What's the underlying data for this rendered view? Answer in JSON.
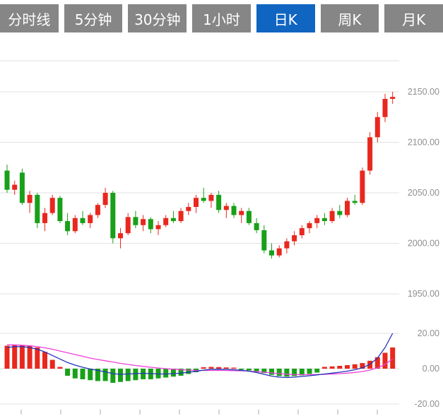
{
  "tabs": [
    {
      "name": "tab-timeline",
      "label": "分时线",
      "active": false
    },
    {
      "name": "tab-5min",
      "label": "5分钟",
      "active": false
    },
    {
      "name": "tab-30min",
      "label": "30分钟",
      "active": false
    },
    {
      "name": "tab-1hour",
      "label": "1小时",
      "active": false
    },
    {
      "name": "tab-daily-k",
      "label": "日K",
      "active": true
    },
    {
      "name": "tab-weekly-k",
      "label": "周K",
      "active": false
    },
    {
      "name": "tab-monthly-k",
      "label": "月K",
      "active": false
    }
  ],
  "colors": {
    "tab_active_bg": "#1065c0",
    "tab_inactive_bg": "#868686",
    "tab_text": "#ffffff",
    "up": "#e8281e",
    "down": "#18a018",
    "dif_line": "#2233bb",
    "dea_line": "#ee3fd8",
    "grid": "#e2e2e2",
    "axis_text": "#8f8f8f",
    "tick": "#aaaaaa"
  },
  "price_axis": [
    {
      "text": "2150.00",
      "value": 2150
    },
    {
      "text": "2100.00",
      "value": 2100
    },
    {
      "text": "2050.00",
      "value": 2050
    },
    {
      "text": "2000.00",
      "value": 2000
    },
    {
      "text": "1950.00",
      "value": 1950
    }
  ],
  "macd_axis": [
    {
      "text": "20.00",
      "value": 20
    },
    {
      "text": "0.00",
      "value": 0
    },
    {
      "text": "-20.00",
      "value": -20
    }
  ],
  "chart_data": {
    "type": "candlestick",
    "convention": "red-up-green-down",
    "panes": [
      {
        "name": "price-pane",
        "type": "candlestick",
        "ylim": [
          1935,
          2185
        ],
        "open": [
          2072,
          2053,
          2070,
          2040,
          2048,
          2020,
          2030,
          2045,
          2022,
          2012,
          2025,
          2020,
          2028,
          2038,
          2050,
          2005,
          2010,
          2026,
          2018,
          2024,
          2014,
          2018,
          2025,
          2022,
          2032,
          2036,
          2045,
          2042,
          2048,
          2033,
          2037,
          2028,
          2032,
          2020,
          2013,
          1993,
          1988,
          1995,
          2002,
          2008,
          2015,
          2020,
          2025,
          2022,
          2032,
          2028,
          2042,
          2040,
          2072,
          2105,
          2125,
          2143
        ],
        "high": [
          2078,
          2062,
          2074,
          2052,
          2050,
          2035,
          2048,
          2047,
          2030,
          2028,
          2032,
          2030,
          2040,
          2055,
          2052,
          2015,
          2030,
          2032,
          2028,
          2026,
          2022,
          2028,
          2032,
          2035,
          2040,
          2048,
          2055,
          2050,
          2052,
          2040,
          2040,
          2035,
          2035,
          2025,
          2018,
          2000,
          1998,
          2005,
          2012,
          2018,
          2022,
          2028,
          2030,
          2035,
          2038,
          2045,
          2048,
          2075,
          2110,
          2130,
          2148,
          2150
        ],
        "low": [
          2050,
          2048,
          2038,
          2030,
          2015,
          2012,
          2028,
          2020,
          2008,
          2010,
          2018,
          2015,
          2025,
          2035,
          2000,
          1995,
          2008,
          2015,
          2012,
          2010,
          2008,
          2016,
          2020,
          2020,
          2028,
          2030,
          2040,
          2035,
          2030,
          2025,
          2025,
          2020,
          2018,
          2010,
          1990,
          1985,
          1986,
          1990,
          1998,
          2005,
          2010,
          2015,
          2018,
          2020,
          2025,
          2026,
          2038,
          2038,
          2068,
          2100,
          2120,
          2138
        ],
        "close": [
          2053,
          2058,
          2040,
          2048,
          2020,
          2030,
          2045,
          2022,
          2012,
          2025,
          2020,
          2028,
          2038,
          2050,
          2005,
          2010,
          2026,
          2018,
          2024,
          2014,
          2018,
          2025,
          2022,
          2032,
          2036,
          2045,
          2042,
          2048,
          2033,
          2037,
          2028,
          2032,
          2020,
          2013,
          1993,
          1988,
          1995,
          2002,
          2008,
          2015,
          2020,
          2025,
          2022,
          2032,
          2028,
          2042,
          2040,
          2072,
          2105,
          2125,
          2143,
          2145
        ]
      },
      {
        "name": "macd-pane",
        "type": "macd",
        "ylim": [
          -28,
          28
        ],
        "hist": [
          13,
          13.5,
          13.2,
          12.8,
          12,
          9.5,
          5,
          1,
          -4,
          -5.5,
          -6,
          -6.5,
          -7,
          -7,
          -8,
          -7.5,
          -7,
          -6.5,
          -6,
          -6,
          -5.5,
          -5,
          -4.5,
          -4,
          -3,
          -2,
          0.8,
          1,
          0.9,
          0.7,
          0.5,
          -0.5,
          -1,
          -1.5,
          -2.5,
          -3.5,
          -4.2,
          -4.5,
          -4.2,
          -3.8,
          -3,
          -2.2,
          1,
          1.3,
          1.6,
          2,
          2.5,
          3.2,
          4.5,
          6.5,
          9,
          12
        ],
        "dif": [
          12,
          12.5,
          12.5,
          12,
          11,
          9.5,
          7.5,
          5.5,
          3.5,
          2,
          0.8,
          -0.2,
          -1,
          -1.8,
          -2.8,
          -3.2,
          -3,
          -2.8,
          -2.6,
          -2.8,
          -3,
          -3,
          -2.8,
          -2.5,
          -2,
          -1.5,
          -0.8,
          -0.4,
          -0.3,
          -0.4,
          -0.6,
          -0.9,
          -1.4,
          -2.2,
          -3.2,
          -4.2,
          -4.8,
          -5,
          -4.8,
          -4.4,
          -4,
          -3.5,
          -3,
          -2.5,
          -2,
          -1.4,
          -0.6,
          0.5,
          2.5,
          6,
          12,
          20
        ],
        "dea": [
          13.5,
          13.5,
          13.3,
          13,
          12.5,
          11.8,
          11,
          10,
          9,
          8,
          7,
          6,
          5.2,
          4.5,
          3.8,
          3,
          2.4,
          1.8,
          1.3,
          0.8,
          0.4,
          0,
          -0.3,
          -0.6,
          -0.8,
          -1,
          -1,
          -1,
          -1,
          -1,
          -1.1,
          -1.2,
          -1.4,
          -1.7,
          -2,
          -2.4,
          -2.8,
          -3.1,
          -3.3,
          -3.4,
          -3.4,
          -3.3,
          -3.2,
          -3,
          -2.8,
          -2.5,
          -2.1,
          -1.6,
          -0.8,
          0.5,
          2.5,
          5.5
        ]
      }
    ]
  }
}
